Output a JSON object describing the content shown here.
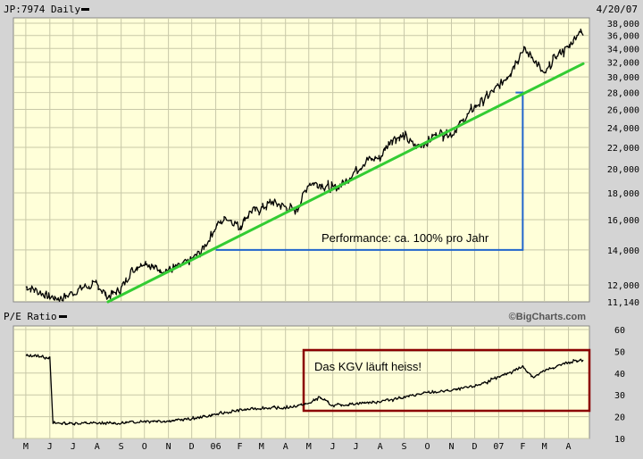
{
  "header": {
    "symbol_label": "JP:7974 Daily",
    "date_label": "4/20/07",
    "pe_label": "P/E Ratio",
    "watermark": "©BigCharts.com"
  },
  "colors": {
    "plot_bg": "#ffffd9",
    "frame_bg": "#d4d4d4",
    "grid": "#c8c8a8",
    "price_line": "#000000",
    "trend_line": "#33cc33",
    "measure_line": "#2266cc",
    "box_line": "#8b0000"
  },
  "annotations": {
    "performance": "Performance: ca. 100% pro Jahr",
    "kgv": "Das KGV läuft heiss!"
  },
  "chart_data": [
    {
      "type": "line",
      "scale": "log",
      "ylim": [
        11140,
        38000
      ],
      "yticks": [
        11140,
        12000,
        14000,
        16000,
        18000,
        20000,
        22000,
        24000,
        26000,
        28000,
        30000,
        32000,
        34000,
        36000,
        38000
      ],
      "ytick_labels": [
        "11,140",
        "12,000",
        "14,000",
        "16,000",
        "18,000",
        "20,000",
        "22,000",
        "24,000",
        "26,000",
        "28,000",
        "30,000",
        "32,000",
        "34,000",
        "36,000",
        "38,000"
      ],
      "x": [
        "2005-05-01",
        "2005-05-15",
        "2005-06-01",
        "2005-06-15",
        "2005-07-01",
        "2005-07-15",
        "2005-08-01",
        "2005-08-15",
        "2005-09-01",
        "2005-09-15",
        "2005-10-01",
        "2005-10-15",
        "2005-11-01",
        "2005-11-15",
        "2005-12-01",
        "2005-12-15",
        "2006-01-01",
        "2006-01-15",
        "2006-02-01",
        "2006-02-15",
        "2006-03-01",
        "2006-03-15",
        "2006-04-01",
        "2006-04-15",
        "2006-05-01",
        "2006-05-15",
        "2006-06-01",
        "2006-06-15",
        "2006-07-01",
        "2006-07-15",
        "2006-08-01",
        "2006-08-15",
        "2006-09-01",
        "2006-09-15",
        "2006-10-01",
        "2006-10-15",
        "2006-11-01",
        "2006-11-15",
        "2006-12-01",
        "2006-12-15",
        "2007-01-01",
        "2007-01-15",
        "2007-02-01",
        "2007-02-15",
        "2007-03-01",
        "2007-03-15",
        "2007-04-01",
        "2007-04-15",
        "2007-04-20"
      ],
      "series": [
        {
          "values": [
            11900,
            11700,
            11400,
            11300,
            11600,
            11900,
            12000,
            11400,
            11800,
            12800,
            13300,
            12900,
            12800,
            13000,
            13400,
            14000,
            15500,
            16200,
            15500,
            16600,
            16800,
            17300,
            16900,
            16600,
            18800,
            18700,
            18300,
            18800,
            19900,
            20800,
            21000,
            22800,
            23100,
            22100,
            22500,
            23500,
            23300,
            24600,
            26300,
            27300,
            28800,
            30500,
            33900,
            32600,
            30100,
            32900,
            34100,
            36900,
            36000
          ]
        }
      ],
      "trend_line": {
        "from": [
          "2005-08-15",
          11140
        ],
        "to": [
          "2007-04-20",
          31800
        ]
      },
      "measure": {
        "base_value": 14000,
        "from_date": "2006-01-01",
        "to_date": "2007-02-01",
        "top_value": 28000
      }
    },
    {
      "type": "line",
      "ylim": [
        10,
        60
      ],
      "yticks": [
        10,
        20,
        30,
        40,
        50,
        60
      ],
      "ytick_labels": [
        "10",
        "20",
        "30",
        "40",
        "50",
        "60"
      ],
      "x": [
        "2005-05-01",
        "2005-05-15",
        "2005-06-01",
        "2005-06-05",
        "2005-06-15",
        "2005-07-01",
        "2005-08-01",
        "2005-09-01",
        "2005-10-01",
        "2005-11-01",
        "2005-12-01",
        "2006-01-01",
        "2006-02-01",
        "2006-03-01",
        "2006-04-01",
        "2006-05-01",
        "2006-05-15",
        "2006-06-01",
        "2006-07-01",
        "2006-08-01",
        "2006-09-01",
        "2006-10-01",
        "2006-11-01",
        "2006-12-01",
        "2007-01-01",
        "2007-02-01",
        "2007-02-15",
        "2007-03-01",
        "2007-04-01",
        "2007-04-20"
      ],
      "series": [
        {
          "values": [
            48,
            48,
            47,
            17,
            17,
            17,
            17,
            17,
            18,
            18,
            19,
            21,
            23,
            24,
            24,
            26,
            29,
            25,
            26,
            27,
            29,
            31,
            32,
            34,
            38,
            43,
            38,
            41,
            45,
            46
          ]
        }
      ]
    }
  ],
  "x_axis": {
    "labels": [
      "M",
      "J",
      "J",
      "A",
      "S",
      "O",
      "N",
      "D",
      "06",
      "F",
      "M",
      "A",
      "M",
      "J",
      "J",
      "A",
      "S",
      "O",
      "N",
      "D",
      "07",
      "F",
      "M",
      "A"
    ],
    "dates": [
      "2005-05-01",
      "2005-06-01",
      "2005-07-01",
      "2005-08-01",
      "2005-09-01",
      "2005-10-01",
      "2005-11-01",
      "2005-12-01",
      "2006-01-01",
      "2006-02-01",
      "2006-03-01",
      "2006-04-01",
      "2006-05-01",
      "2006-06-01",
      "2006-07-01",
      "2006-08-01",
      "2006-09-01",
      "2006-10-01",
      "2006-11-01",
      "2006-12-01",
      "2007-01-01",
      "2007-02-01",
      "2007-03-01",
      "2007-04-01"
    ]
  }
}
